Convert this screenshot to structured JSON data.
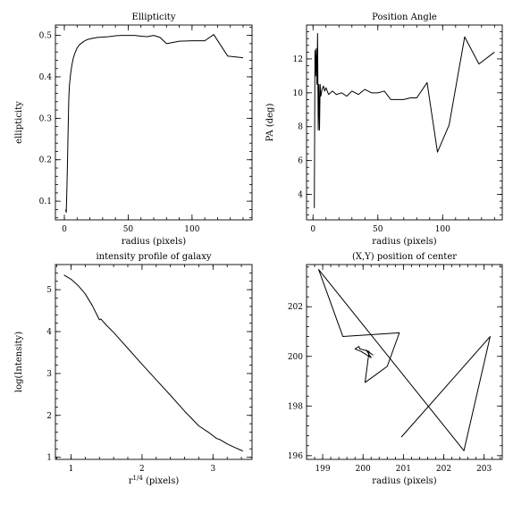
{
  "chart_data": [
    {
      "type": "line",
      "title": "Ellipticity",
      "xlabel": "radius (pixels)",
      "ylabel": "ellipticity",
      "xlim": [
        -7,
        147
      ],
      "ylim": [
        0.055,
        0.525
      ],
      "xticks": [
        0,
        50,
        100
      ],
      "xtick_labels": [
        "0",
        "50",
        "100"
      ],
      "yticks": [
        0.1,
        0.2,
        0.3,
        0.4,
        0.5
      ],
      "ytick_labels": [
        "0.1",
        "0.2",
        "0.3",
        "0.4",
        "0.5"
      ],
      "grid": false,
      "series": [
        {
          "x": [
            1,
            1.5,
            2,
            2.5,
            3,
            3.5,
            4,
            5,
            6,
            7,
            8,
            10,
            12,
            15,
            18,
            22,
            26,
            30,
            35,
            40,
            45,
            50,
            55,
            60,
            65,
            70,
            75,
            80,
            90,
            100,
            110,
            117,
            128,
            140
          ],
          "y": [
            0.08,
            0.073,
            0.13,
            0.2,
            0.28,
            0.35,
            0.38,
            0.41,
            0.43,
            0.445,
            0.455,
            0.47,
            0.478,
            0.485,
            0.49,
            0.493,
            0.495,
            0.496,
            0.497,
            0.499,
            0.5,
            0.5,
            0.5,
            0.498,
            0.497,
            0.5,
            0.495,
            0.48,
            0.486,
            0.487,
            0.487,
            0.502,
            0.45,
            0.446
          ]
        }
      ]
    },
    {
      "type": "line",
      "title": "Position Angle",
      "xlabel": "radius (pixels)",
      "ylabel": "PA (deg)",
      "xlim": [
        -5,
        146
      ],
      "ylim": [
        2.5,
        14
      ],
      "xticks": [
        0,
        50,
        100
      ],
      "xtick_labels": [
        "0",
        "50",
        "100"
      ],
      "yticks": [
        4,
        6,
        8,
        10,
        12
      ],
      "ytick_labels": [
        "4",
        "6",
        "8",
        "10",
        "12"
      ],
      "grid": false,
      "series": [
        {
          "x": [
            1,
            1.5,
            2,
            2.5,
            3,
            3.5,
            4,
            4.5,
            5,
            5.5,
            6,
            7,
            8,
            9,
            10,
            12,
            15,
            18,
            22,
            26,
            30,
            35,
            40,
            45,
            50,
            55,
            60,
            65,
            70,
            75,
            80,
            88,
            96,
            105,
            117,
            128,
            140
          ],
          "y": [
            3.2,
            12.5,
            11,
            12.6,
            10.5,
            13.5,
            7.8,
            10.5,
            7.8,
            10.5,
            9.8,
            10.2,
            10.4,
            10.1,
            10.3,
            9.9,
            10.1,
            9.9,
            10.0,
            9.8,
            10.1,
            9.9,
            10.2,
            10.0,
            10.0,
            10.1,
            9.6,
            9.6,
            9.6,
            9.7,
            9.7,
            10.6,
            6.5,
            8.1,
            13.3,
            11.7,
            12.4
          ]
        }
      ]
    },
    {
      "type": "line",
      "title": "intensity profile of galaxy",
      "xlabel": "r1/4 (pixels)",
      "ylabel": "log(Intensity)",
      "xlim": [
        0.78,
        3.55
      ],
      "ylim": [
        0.95,
        5.6
      ],
      "xticks": [
        1,
        2,
        3
      ],
      "xtick_labels": [
        "1",
        "2",
        "3"
      ],
      "yticks": [
        1,
        2,
        3,
        4,
        5
      ],
      "ytick_labels": [
        "1",
        "2",
        "3",
        "4",
        "5"
      ],
      "grid": false,
      "series": [
        {
          "x": [
            0.9,
            1.0,
            1.1,
            1.2,
            1.3,
            1.38,
            1.4,
            1.42,
            1.5,
            1.6,
            1.8,
            2.0,
            2.2,
            2.4,
            2.6,
            2.8,
            2.95,
            3.05,
            3.1,
            3.2,
            3.3,
            3.42
          ],
          "y": [
            5.35,
            5.25,
            5.1,
            4.9,
            4.62,
            4.35,
            4.28,
            4.3,
            4.15,
            3.98,
            3.6,
            3.22,
            2.85,
            2.48,
            2.1,
            1.75,
            1.58,
            1.45,
            1.42,
            1.32,
            1.24,
            1.15
          ]
        }
      ]
    },
    {
      "type": "line",
      "title": "(X,Y) position of center",
      "xlabel": "radius (pixels)",
      "ylabel": "",
      "xlim": [
        198.6,
        203.45
      ],
      "ylim": [
        195.85,
        203.7
      ],
      "xticks": [
        199,
        200,
        201,
        202,
        203
      ],
      "xtick_labels": [
        "199",
        "200",
        "201",
        "202",
        "203"
      ],
      "yticks": [
        196,
        198,
        200,
        202
      ],
      "ytick_labels": [
        "196",
        "198",
        "200",
        "202"
      ],
      "grid": false,
      "series": [
        {
          "x": [
            200.25,
            200.08,
            200.2,
            199.95,
            199.8,
            199.9,
            199.92,
            200.15,
            200.05,
            200.35,
            200.6,
            200.9,
            199.5,
            198.9,
            202.5,
            203.15,
            200.95
          ],
          "y": [
            200.05,
            200.25,
            199.95,
            200.2,
            200.3,
            200.4,
            200.3,
            200.2,
            198.95,
            199.3,
            199.6,
            200.95,
            200.8,
            203.5,
            196.2,
            200.8,
            196.75
          ]
        }
      ]
    }
  ]
}
